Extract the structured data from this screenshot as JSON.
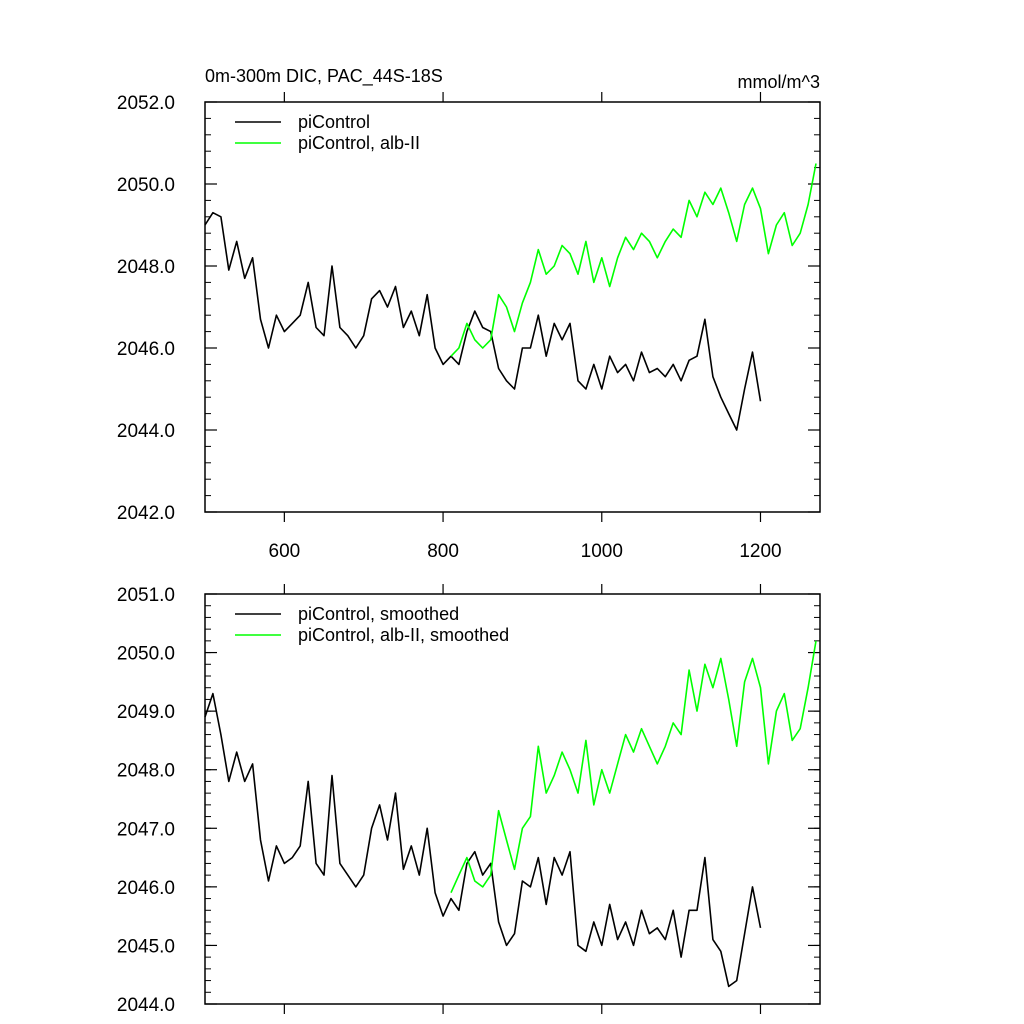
{
  "chart_data": [
    {
      "type": "line",
      "title": "0m-300m DIC, PAC_44S-18S",
      "units": "mmol/m^3",
      "xlim": [
        500,
        1275
      ],
      "ylim": [
        2042,
        2052
      ],
      "xticks": [
        600,
        800,
        1000,
        1200
      ],
      "xtick_labels": [
        "600",
        "800",
        "1000",
        "1200"
      ],
      "yticks": [
        2042,
        2044,
        2046,
        2048,
        2050,
        2052
      ],
      "ytick_labels": [
        "2042.0",
        "2044.0",
        "2046.0",
        "2048.0",
        "2050.0",
        "2052.0"
      ],
      "legend_position": "top-left",
      "series": [
        {
          "name": "piControl",
          "color": "#000000",
          "x": [
            500,
            510,
            520,
            530,
            540,
            550,
            560,
            570,
            580,
            590,
            600,
            610,
            620,
            630,
            640,
            650,
            660,
            670,
            680,
            690,
            700,
            710,
            720,
            730,
            740,
            750,
            760,
            770,
            780,
            790,
            800,
            810,
            820,
            830,
            840,
            850,
            860,
            870,
            880,
            890,
            900,
            910,
            920,
            930,
            940,
            950,
            960,
            970,
            980,
            990,
            1000,
            1010,
            1020,
            1030,
            1040,
            1050,
            1060,
            1070,
            1080,
            1090,
            1100,
            1110,
            1120,
            1130,
            1140,
            1150,
            1160,
            1170,
            1180,
            1190,
            1200
          ],
          "y": [
            2049.0,
            2049.3,
            2049.2,
            2047.9,
            2048.6,
            2047.7,
            2048.2,
            2046.7,
            2046.0,
            2046.8,
            2046.4,
            2046.6,
            2046.8,
            2047.6,
            2046.5,
            2046.3,
            2048.0,
            2046.5,
            2046.3,
            2046.0,
            2046.3,
            2047.2,
            2047.4,
            2047.0,
            2047.5,
            2046.5,
            2046.9,
            2046.3,
            2047.3,
            2046.0,
            2045.6,
            2045.8,
            2045.6,
            2046.4,
            2046.9,
            2046.5,
            2046.4,
            2045.5,
            2045.2,
            2045.0,
            2046.0,
            2046.0,
            2046.8,
            2045.8,
            2046.6,
            2046.2,
            2046.6,
            2045.2,
            2045.0,
            2045.6,
            2045.0,
            2045.8,
            2045.4,
            2045.6,
            2045.2,
            2045.9,
            2045.4,
            2045.5,
            2045.3,
            2045.6,
            2045.2,
            2045.7,
            2045.8,
            2046.7,
            2045.3,
            2044.8,
            2044.4,
            2044.0,
            2045.0,
            2045.9,
            2044.7
          ]
        },
        {
          "name": "piControl, alb-II",
          "color": "#00ff00",
          "x": [
            810,
            820,
            830,
            840,
            850,
            860,
            870,
            880,
            890,
            900,
            910,
            920,
            930,
            940,
            950,
            960,
            970,
            980,
            990,
            1000,
            1010,
            1020,
            1030,
            1040,
            1050,
            1060,
            1070,
            1080,
            1090,
            1100,
            1110,
            1120,
            1130,
            1140,
            1150,
            1160,
            1170,
            1180,
            1190,
            1200,
            1210,
            1220,
            1230,
            1240,
            1250,
            1260,
            1270
          ],
          "y": [
            2045.8,
            2046.0,
            2046.6,
            2046.2,
            2046.0,
            2046.2,
            2047.3,
            2047.0,
            2046.4,
            2047.1,
            2047.6,
            2048.4,
            2047.8,
            2048.0,
            2048.5,
            2048.3,
            2047.8,
            2048.6,
            2047.6,
            2048.2,
            2047.5,
            2048.2,
            2048.7,
            2048.4,
            2048.8,
            2048.6,
            2048.2,
            2048.6,
            2048.9,
            2048.7,
            2049.6,
            2049.2,
            2049.8,
            2049.5,
            2049.9,
            2049.3,
            2048.6,
            2049.5,
            2049.9,
            2049.4,
            2048.3,
            2049.0,
            2049.3,
            2048.5,
            2048.8,
            2049.5,
            2050.5
          ]
        }
      ]
    },
    {
      "type": "line",
      "title": "",
      "xlim": [
        500,
        1275
      ],
      "ylim": [
        2044,
        2051
      ],
      "xticks": [
        600,
        800,
        1000,
        1200
      ],
      "xtick_labels": [
        "",
        "",
        "",
        ""
      ],
      "yticks": [
        2044,
        2045,
        2046,
        2047,
        2048,
        2049,
        2050,
        2051
      ],
      "ytick_labels": [
        "2044.0",
        "2045.0",
        "2046.0",
        "2047.0",
        "2048.0",
        "2049.0",
        "2050.0",
        "2051.0"
      ],
      "legend_position": "top-left",
      "series": [
        {
          "name": "piControl, smoothed",
          "color": "#000000",
          "x": [
            500,
            510,
            520,
            530,
            540,
            550,
            560,
            570,
            580,
            590,
            600,
            610,
            620,
            630,
            640,
            650,
            660,
            670,
            680,
            690,
            700,
            710,
            720,
            730,
            740,
            750,
            760,
            770,
            780,
            790,
            800,
            810,
            820,
            830,
            840,
            850,
            860,
            870,
            880,
            890,
            900,
            910,
            920,
            930,
            940,
            950,
            960,
            970,
            980,
            990,
            1000,
            1010,
            1020,
            1030,
            1040,
            1050,
            1060,
            1070,
            1080,
            1090,
            1100,
            1110,
            1120,
            1130,
            1140,
            1150,
            1160,
            1170,
            1180,
            1190,
            1200
          ],
          "y": [
            2048.9,
            2049.3,
            2048.6,
            2047.8,
            2048.3,
            2047.8,
            2048.1,
            2046.8,
            2046.1,
            2046.7,
            2046.4,
            2046.5,
            2046.7,
            2047.8,
            2046.4,
            2046.2,
            2047.9,
            2046.4,
            2046.2,
            2046.0,
            2046.2,
            2047.0,
            2047.4,
            2046.8,
            2047.6,
            2046.3,
            2046.7,
            2046.2,
            2047.0,
            2045.9,
            2045.5,
            2045.8,
            2045.6,
            2046.4,
            2046.6,
            2046.2,
            2046.4,
            2045.4,
            2045.0,
            2045.2,
            2046.1,
            2046.0,
            2046.5,
            2045.7,
            2046.5,
            2046.2,
            2046.6,
            2045.0,
            2044.9,
            2045.4,
            2045.0,
            2045.7,
            2045.1,
            2045.4,
            2045.0,
            2045.6,
            2045.2,
            2045.3,
            2045.1,
            2045.6,
            2044.8,
            2045.6,
            2045.6,
            2046.5,
            2045.1,
            2044.9,
            2044.3,
            2044.4,
            2045.2,
            2046.0,
            2045.3
          ]
        },
        {
          "name": "piControl, alb-II, smoothed",
          "color": "#00ff00",
          "x": [
            810,
            820,
            830,
            840,
            850,
            860,
            870,
            880,
            890,
            900,
            910,
            920,
            930,
            940,
            950,
            960,
            970,
            980,
            990,
            1000,
            1010,
            1020,
            1030,
            1040,
            1050,
            1060,
            1070,
            1080,
            1090,
            1100,
            1110,
            1120,
            1130,
            1140,
            1150,
            1160,
            1170,
            1180,
            1190,
            1200,
            1210,
            1220,
            1230,
            1240,
            1250,
            1260,
            1270
          ],
          "y": [
            2045.9,
            2046.2,
            2046.5,
            2046.1,
            2046.0,
            2046.2,
            2047.3,
            2046.8,
            2046.3,
            2047.0,
            2047.2,
            2048.4,
            2047.6,
            2047.9,
            2048.3,
            2048.0,
            2047.6,
            2048.5,
            2047.4,
            2048.0,
            2047.6,
            2048.1,
            2048.6,
            2048.3,
            2048.7,
            2048.4,
            2048.1,
            2048.4,
            2048.8,
            2048.6,
            2049.7,
            2049.0,
            2049.8,
            2049.4,
            2049.9,
            2049.2,
            2048.4,
            2049.5,
            2049.9,
            2049.4,
            2048.1,
            2049.0,
            2049.3,
            2048.5,
            2048.7,
            2049.4,
            2050.2
          ]
        }
      ]
    }
  ]
}
